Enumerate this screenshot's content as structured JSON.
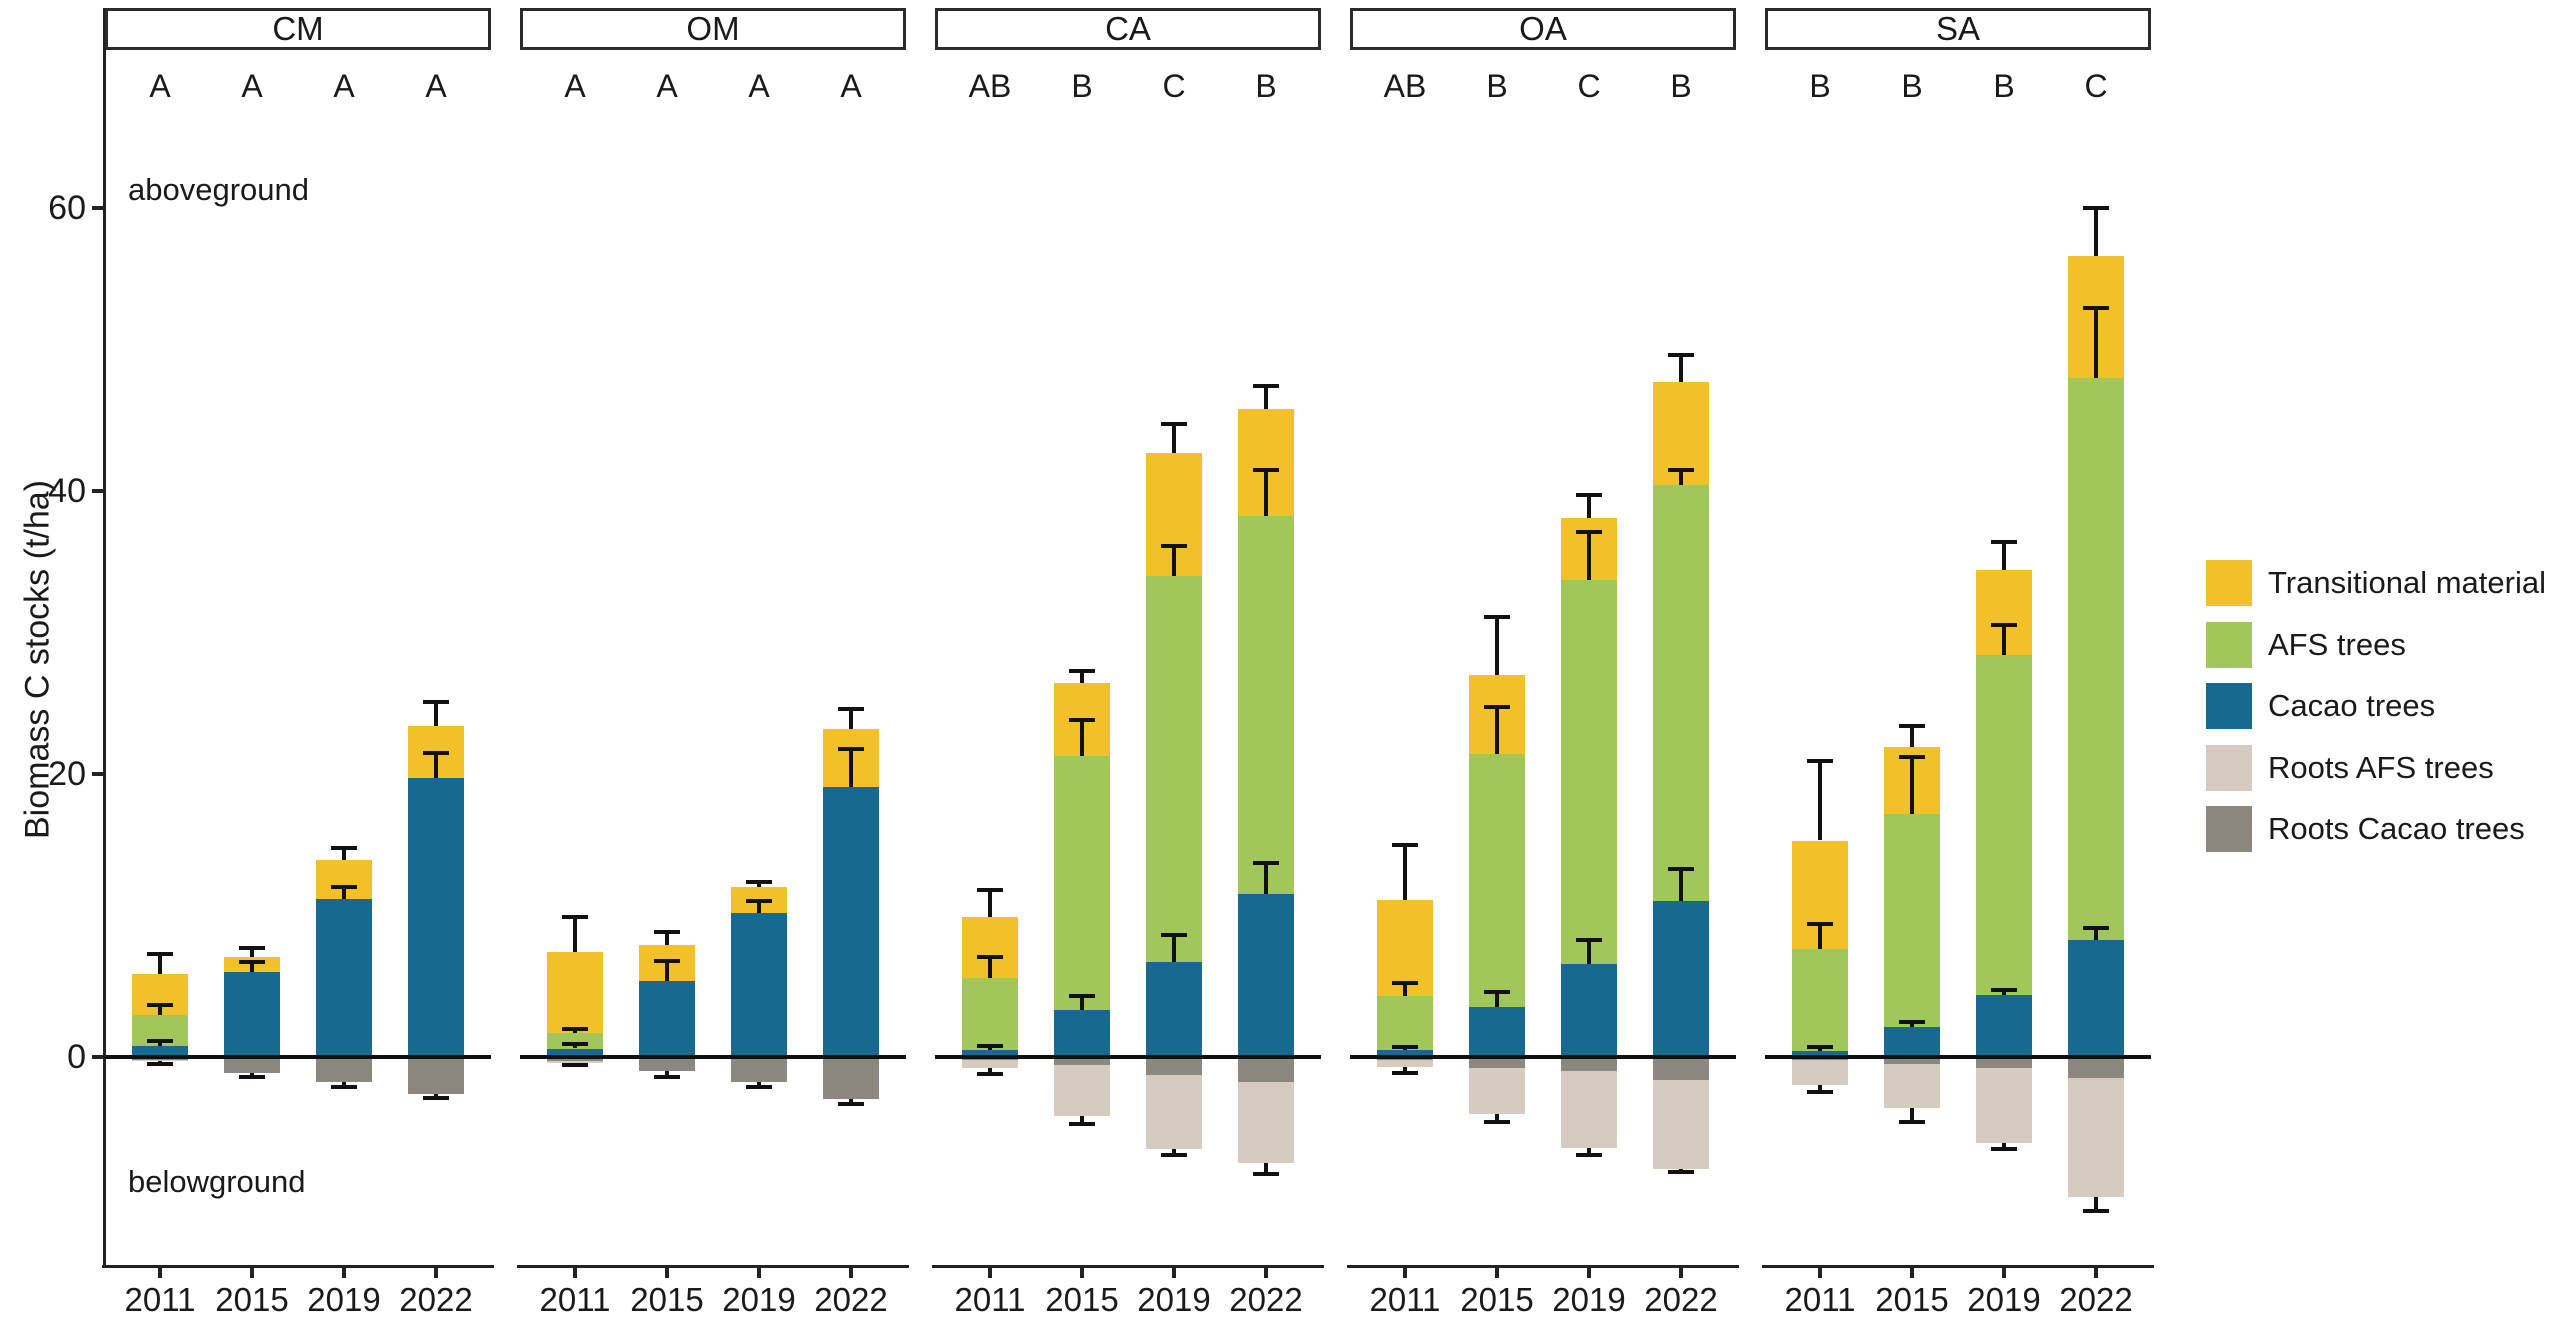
{
  "figure": {
    "ylabel": "Biomass C stocks (t/ha)",
    "above_label": "aboveground",
    "below_label": "belowground"
  },
  "chart_data": {
    "type": "bar",
    "stacked": true,
    "title": "",
    "ylabel": "Biomass C stocks (t/ha)",
    "yticks": [
      0,
      20,
      40,
      60
    ],
    "ylim": [
      -13,
      65
    ],
    "grid": false,
    "legend_position": "right",
    "categories": [
      "2011",
      "2015",
      "2019",
      "2022"
    ],
    "units": "t/ha",
    "colors": {
      "transitional": "#F2C029",
      "afs": "#A1C75B",
      "cacao": "#17698F",
      "roots_afs": "#D5CBC0",
      "roots_cacao": "#8C887F"
    },
    "legend": [
      {
        "label": "Transitional material",
        "color": "#F2C029"
      },
      {
        "label": "AFS trees",
        "color": "#A1C75B"
      },
      {
        "label": "Cacao trees",
        "color": "#17698F"
      },
      {
        "label": "Roots AFS trees",
        "color": "#D5CBC0"
      },
      {
        "label": "Roots Cacao trees",
        "color": "#8C887F"
      }
    ],
    "panels": [
      {
        "label": "CM",
        "bars": [
          {
            "year": "2011",
            "letter": "A",
            "cacao": 0.8,
            "afs": 2.2,
            "trans": 2.9,
            "roots_cacao": 0.2,
            "roots_afs": 0.1,
            "err_top": 7.3,
            "err_mid": 3.7,
            "err_blue": 1.1,
            "err_below": 0.5
          },
          {
            "year": "2015",
            "letter": "A",
            "cacao": 6.0,
            "afs": 0,
            "trans": 1.1,
            "roots_cacao": 1.1,
            "roots_afs": 0,
            "err_top": 7.7,
            "err_mid": null,
            "err_blue": 6.7,
            "err_below": 1.4
          },
          {
            "year": "2019",
            "letter": "A",
            "cacao": 11.2,
            "afs": 0,
            "trans": 2.7,
            "roots_cacao": 1.8,
            "roots_afs": 0,
            "err_top": 14.8,
            "err_mid": null,
            "err_blue": 12.0,
            "err_below": 2.1
          },
          {
            "year": "2022",
            "letter": "A",
            "cacao": 19.7,
            "afs": 0,
            "trans": 3.7,
            "roots_cacao": 2.6,
            "roots_afs": 0,
            "err_top": 25.1,
            "err_mid": null,
            "err_blue": 21.5,
            "err_below": 2.9
          }
        ]
      },
      {
        "label": "OM",
        "bars": [
          {
            "year": "2011",
            "letter": "A",
            "cacao": 0.6,
            "afs": 1.1,
            "trans": 5.7,
            "roots_cacao": 0.3,
            "roots_afs": 0.1,
            "err_top": 9.9,
            "err_mid": 2.0,
            "err_blue": 0.9,
            "err_below": 0.6
          },
          {
            "year": "2015",
            "letter": "A",
            "cacao": 5.4,
            "afs": 0,
            "trans": 2.5,
            "roots_cacao": 1.0,
            "roots_afs": 0,
            "err_top": 8.8,
            "err_mid": null,
            "err_blue": 6.8,
            "err_below": 1.4
          },
          {
            "year": "2019",
            "letter": "A",
            "cacao": 10.2,
            "afs": 0,
            "trans": 1.8,
            "roots_cacao": 1.8,
            "roots_afs": 0,
            "err_top": 12.4,
            "err_mid": null,
            "err_blue": 11.0,
            "err_below": 2.1
          },
          {
            "year": "2022",
            "letter": "A",
            "cacao": 19.1,
            "afs": 0,
            "trans": 4.1,
            "roots_cacao": 3.0,
            "roots_afs": 0,
            "err_top": 24.6,
            "err_mid": null,
            "err_blue": 21.8,
            "err_below": 3.3
          }
        ]
      },
      {
        "label": "CA",
        "bars": [
          {
            "year": "2011",
            "letter": "AB",
            "cacao": 0.5,
            "afs": 5.1,
            "trans": 4.3,
            "roots_cacao": 0.2,
            "roots_afs": 0.6,
            "err_top": 11.8,
            "err_mid": 7.1,
            "err_blue": 0.8,
            "err_below": 1.2
          },
          {
            "year": "2015",
            "letter": "B",
            "cacao": 3.3,
            "afs": 18.0,
            "trans": 5.1,
            "roots_cacao": 0.6,
            "roots_afs": 3.6,
            "err_top": 27.3,
            "err_mid": 23.8,
            "err_blue": 4.3,
            "err_below": 4.7
          },
          {
            "year": "2019",
            "letter": "C",
            "cacao": 6.7,
            "afs": 27.3,
            "trans": 8.7,
            "roots_cacao": 1.3,
            "roots_afs": 5.2,
            "err_top": 44.7,
            "err_mid": 36.1,
            "err_blue": 8.6,
            "err_below": 6.9
          },
          {
            "year": "2022",
            "letter": "B",
            "cacao": 11.5,
            "afs": 26.7,
            "trans": 7.6,
            "roots_cacao": 1.8,
            "roots_afs": 5.7,
            "err_top": 47.4,
            "err_mid": 41.5,
            "err_blue": 13.7,
            "err_below": 8.3
          }
        ]
      },
      {
        "label": "OA",
        "bars": [
          {
            "year": "2011",
            "letter": "AB",
            "cacao": 0.5,
            "afs": 3.8,
            "trans": 6.8,
            "roots_cacao": 0.2,
            "roots_afs": 0.5,
            "err_top": 15.0,
            "err_mid": 5.2,
            "err_blue": 0.7,
            "err_below": 1.1
          },
          {
            "year": "2015",
            "letter": "B",
            "cacao": 3.5,
            "afs": 17.9,
            "trans": 5.6,
            "roots_cacao": 0.8,
            "roots_afs": 3.2,
            "err_top": 31.1,
            "err_mid": 24.7,
            "err_blue": 4.6,
            "err_below": 4.6
          },
          {
            "year": "2019",
            "letter": "C",
            "cacao": 6.6,
            "afs": 27.1,
            "trans": 4.4,
            "roots_cacao": 1.0,
            "roots_afs": 5.4,
            "err_top": 39.7,
            "err_mid": 37.1,
            "err_blue": 8.3,
            "err_below": 6.9
          },
          {
            "year": "2022",
            "letter": "B",
            "cacao": 11.0,
            "afs": 29.4,
            "trans": 7.3,
            "roots_cacao": 1.6,
            "roots_afs": 6.3,
            "err_top": 49.6,
            "err_mid": 41.5,
            "err_blue": 13.3,
            "err_below": 8.1
          }
        ]
      },
      {
        "label": "SA",
        "bars": [
          {
            "year": "2011",
            "letter": "B",
            "cacao": 0.4,
            "afs": 7.2,
            "trans": 7.7,
            "roots_cacao": 0.2,
            "roots_afs": 1.8,
            "err_top": 20.9,
            "err_mid": 9.4,
            "err_blue": 0.7,
            "err_below": 2.5
          },
          {
            "year": "2015",
            "letter": "B",
            "cacao": 2.1,
            "afs": 15.1,
            "trans": 4.7,
            "roots_cacao": 0.5,
            "roots_afs": 3.1,
            "err_top": 23.4,
            "err_mid": 21.2,
            "err_blue": 2.5,
            "err_below": 4.6
          },
          {
            "year": "2019",
            "letter": "B",
            "cacao": 4.4,
            "afs": 24.0,
            "trans": 6.0,
            "roots_cacao": 0.8,
            "roots_afs": 5.3,
            "err_top": 36.4,
            "err_mid": 30.5,
            "err_blue": 4.7,
            "err_below": 6.5
          },
          {
            "year": "2022",
            "letter": "C",
            "cacao": 8.3,
            "afs": 39.7,
            "trans": 8.6,
            "roots_cacao": 1.5,
            "roots_afs": 8.4,
            "err_top": 60.0,
            "err_mid": 52.9,
            "err_blue": 9.1,
            "err_below": 10.9
          }
        ]
      }
    ]
  }
}
